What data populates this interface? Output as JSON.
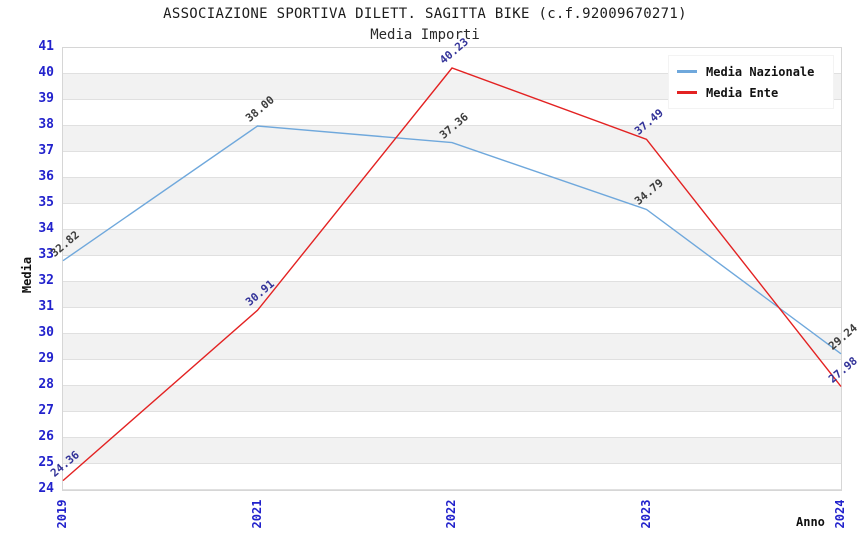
{
  "chart_data": {
    "type": "line",
    "title": "ASSOCIAZIONE SPORTIVA DILETT. SAGITTA BIKE (c.f.92009670271)",
    "subtitle": "Media Importi",
    "categories": [
      "2019",
      "2021",
      "2022",
      "2023",
      "2024"
    ],
    "series": [
      {
        "name": "Media Nazionale",
        "color": "#6fa8dc",
        "label_color": "#3d3d3d",
        "values": [
          32.82,
          38.0,
          37.36,
          34.79,
          29.24
        ]
      },
      {
        "name": "Media Ente",
        "color": "#e32222",
        "label_color": "#333399",
        "values": [
          24.36,
          30.91,
          40.23,
          37.49,
          27.98
        ]
      }
    ],
    "xlabel": "Anno",
    "ylabel": "Media",
    "ylim": [
      24,
      41
    ],
    "ytick_step": 1,
    "grid": true,
    "legend_position": "top-right",
    "tick_label_color": "#2222cc",
    "value_label_decimals": 2
  }
}
